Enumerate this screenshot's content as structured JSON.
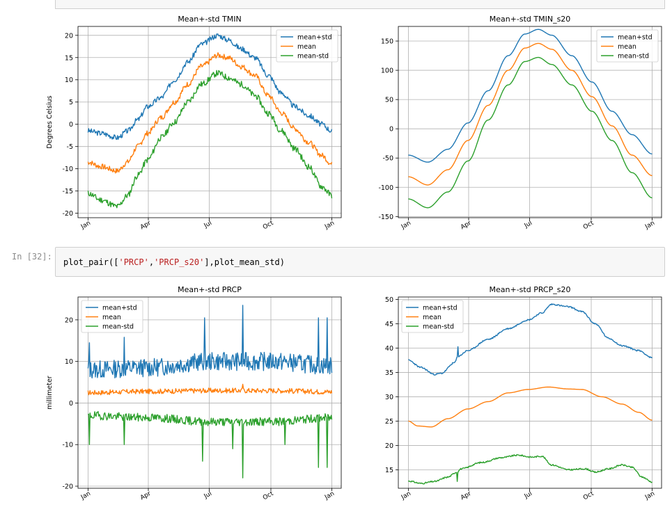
{
  "cells": {
    "prompt": "In [32]:",
    "code": {
      "prefix": "plot_pair([",
      "arg1": "'PRCP'",
      "comma": ",",
      "arg2": "'PRCP_s20'",
      "suffix": "],plot_mean_std)"
    }
  },
  "chart_data": [
    {
      "type": "line",
      "title": "Mean+-std   TMIN",
      "ylabel": "Degrees Celsius",
      "ylim": [
        -21,
        22
      ],
      "yticks": [
        -20,
        -15,
        -10,
        -5,
        0,
        5,
        10,
        15,
        20
      ],
      "xticks": [
        "Jan",
        "Apr",
        "Jul",
        "Oct",
        "Jan"
      ],
      "xtick_days": [
        1,
        91,
        182,
        274,
        365
      ],
      "grid": true,
      "legend": "top-right",
      "series": [
        {
          "name": "mean+std",
          "color": "#1f77b4",
          "noise": 0.6,
          "seed": 3,
          "knots": [
            [
              1,
              -1.5
            ],
            [
              20,
              -2
            ],
            [
              45,
              -3
            ],
            [
              60,
              -1.5
            ],
            [
              75,
              1
            ],
            [
              90,
              4
            ],
            [
              110,
              6
            ],
            [
              130,
              10
            ],
            [
              150,
              14
            ],
            [
              170,
              18
            ],
            [
              195,
              20
            ],
            [
              210,
              19
            ],
            [
              230,
              17
            ],
            [
              250,
              15
            ],
            [
              270,
              11
            ],
            [
              290,
              7
            ],
            [
              310,
              4
            ],
            [
              330,
              2
            ],
            [
              350,
              0
            ],
            [
              365,
              -1.5
            ]
          ]
        },
        {
          "name": "mean",
          "color": "#ff7f0e",
          "noise": 0.6,
          "seed": 7,
          "knots": [
            [
              1,
              -8.5
            ],
            [
              20,
              -9.5
            ],
            [
              45,
              -10.5
            ],
            [
              60,
              -8.5
            ],
            [
              75,
              -5
            ],
            [
              90,
              -2
            ],
            [
              110,
              1.5
            ],
            [
              130,
              5
            ],
            [
              150,
              9
            ],
            [
              170,
              13
            ],
            [
              195,
              15.5
            ],
            [
              210,
              15
            ],
            [
              230,
              13
            ],
            [
              250,
              11
            ],
            [
              270,
              6.5
            ],
            [
              290,
              2.5
            ],
            [
              310,
              -1
            ],
            [
              330,
              -4
            ],
            [
              350,
              -7
            ],
            [
              365,
              -9
            ]
          ]
        },
        {
          "name": "mean-std",
          "color": "#2ca02c",
          "noise": 0.7,
          "seed": 11,
          "knots": [
            [
              1,
              -15.5
            ],
            [
              20,
              -17
            ],
            [
              45,
              -18.5
            ],
            [
              60,
              -16
            ],
            [
              75,
              -11.5
            ],
            [
              90,
              -8
            ],
            [
              110,
              -3
            ],
            [
              130,
              0.5
            ],
            [
              150,
              5
            ],
            [
              170,
              9
            ],
            [
              195,
              11.5
            ],
            [
              210,
              10.5
            ],
            [
              230,
              9
            ],
            [
              250,
              6.5
            ],
            [
              270,
              2.5
            ],
            [
              290,
              -1.5
            ],
            [
              310,
              -5.5
            ],
            [
              330,
              -9.5
            ],
            [
              350,
              -14
            ],
            [
              365,
              -16
            ]
          ]
        }
      ]
    },
    {
      "type": "line",
      "title": "Mean+-std   TMIN_s20",
      "ylabel": "",
      "ylim": [
        -152,
        175
      ],
      "yticks": [
        -150,
        -100,
        -50,
        0,
        50,
        100,
        150
      ],
      "xticks": [
        "Jan",
        "Apr",
        "Jul",
        "Oct",
        "Jan"
      ],
      "xtick_days": [
        1,
        91,
        182,
        274,
        365
      ],
      "grid": true,
      "legend": "top-right",
      "series": [
        {
          "name": "mean+std",
          "color": "#1f77b4",
          "noise": 0,
          "seed": 1,
          "knots": [
            [
              1,
              -45
            ],
            [
              30,
              -57
            ],
            [
              60,
              -35
            ],
            [
              90,
              10
            ],
            [
              120,
              65
            ],
            [
              150,
              125
            ],
            [
              175,
              162
            ],
            [
              195,
              170
            ],
            [
              215,
              160
            ],
            [
              245,
              125
            ],
            [
              275,
              80
            ],
            [
              305,
              30
            ],
            [
              335,
              -10
            ],
            [
              365,
              -43
            ]
          ]
        },
        {
          "name": "mean",
          "color": "#ff7f0e",
          "noise": 0,
          "seed": 2,
          "knots": [
            [
              1,
              -82
            ],
            [
              30,
              -96
            ],
            [
              60,
              -70
            ],
            [
              90,
              -20
            ],
            [
              120,
              40
            ],
            [
              150,
              100
            ],
            [
              175,
              138
            ],
            [
              195,
              146
            ],
            [
              215,
              136
            ],
            [
              245,
              100
            ],
            [
              275,
              55
            ],
            [
              305,
              5
            ],
            [
              335,
              -45
            ],
            [
              365,
              -80
            ]
          ]
        },
        {
          "name": "mean-std",
          "color": "#2ca02c",
          "noise": 0,
          "seed": 4,
          "knots": [
            [
              1,
              -120
            ],
            [
              30,
              -135
            ],
            [
              60,
              -108
            ],
            [
              90,
              -55
            ],
            [
              120,
              15
            ],
            [
              150,
              75
            ],
            [
              175,
              115
            ],
            [
              195,
              122
            ],
            [
              215,
              110
            ],
            [
              245,
              75
            ],
            [
              275,
              30
            ],
            [
              305,
              -20
            ],
            [
              335,
              -75
            ],
            [
              365,
              -118
            ]
          ]
        }
      ]
    },
    {
      "type": "line",
      "title": "Mean+-std   PRCP",
      "ylabel": "millimeter",
      "ylim": [
        -20.5,
        25.5
      ],
      "yticks": [
        -20,
        -10,
        0,
        10,
        20
      ],
      "xticks": [
        "Jan",
        "Apr",
        "Jul",
        "Oct",
        "Jan"
      ],
      "xtick_days": [
        1,
        91,
        182,
        274,
        365
      ],
      "grid": true,
      "legend": "top-left",
      "series": [
        {
          "name": "mean+std",
          "color": "#1f77b4",
          "noise": 2.2,
          "seed": 13,
          "knots": [
            [
              1,
              8
            ],
            [
              90,
              8.5
            ],
            [
              182,
              10
            ],
            [
              274,
              10
            ],
            [
              365,
              9
            ]
          ],
          "spikes": [
            [
              3,
              14.5
            ],
            [
              55,
              15.8
            ],
            [
              175,
              20.5
            ],
            [
              232,
              23.5
            ],
            [
              345,
              20.5
            ],
            [
              358,
              20.5
            ]
          ]
        },
        {
          "name": "mean",
          "color": "#ff7f0e",
          "noise": 0.6,
          "seed": 17,
          "knots": [
            [
              1,
              2.5
            ],
            [
              90,
              2.8
            ],
            [
              182,
              3
            ],
            [
              274,
              3
            ],
            [
              365,
              2.7
            ]
          ],
          "spikes": [
            [
              232,
              4.5
            ]
          ]
        },
        {
          "name": "mean-std",
          "color": "#2ca02c",
          "noise": 1.0,
          "seed": 19,
          "knots": [
            [
              1,
              -3
            ],
            [
              90,
              -3.5
            ],
            [
              182,
              -4.5
            ],
            [
              274,
              -4.5
            ],
            [
              365,
              -3.5
            ]
          ],
          "spikes": [
            [
              3,
              -10
            ],
            [
              55,
              -10
            ],
            [
              172,
              -14
            ],
            [
              217,
              -11
            ],
            [
              232,
              -18
            ],
            [
              295,
              -10
            ],
            [
              345,
              -15.5
            ],
            [
              358,
              -15.5
            ]
          ]
        }
      ]
    },
    {
      "type": "line",
      "title": "Mean+-std   PRCP_s20",
      "ylabel": "",
      "ylim": [
        11.2,
        50.5
      ],
      "yticks": [
        15,
        20,
        25,
        30,
        35,
        40,
        45,
        50
      ],
      "xticks": [
        "Jan",
        "Apr",
        "Jul",
        "Oct",
        "Jan"
      ],
      "xtick_days": [
        1,
        91,
        182,
        274,
        365
      ],
      "grid": true,
      "legend": "top-left",
      "series": [
        {
          "name": "mean+std",
          "color": "#1f77b4",
          "noise": 0.15,
          "seed": 23,
          "knots": [
            [
              1,
              37.5
            ],
            [
              20,
              36
            ],
            [
              40,
              34.6
            ],
            [
              50,
              34.8
            ],
            [
              70,
              37
            ],
            [
              75,
              38.3
            ],
            [
              90,
              39.5
            ],
            [
              120,
              41.8
            ],
            [
              150,
              44
            ],
            [
              180,
              45.8
            ],
            [
              200,
              47.2
            ],
            [
              215,
              49
            ],
            [
              240,
              48.5
            ],
            [
              260,
              47.5
            ],
            [
              280,
              45
            ],
            [
              300,
              42
            ],
            [
              320,
              40.5
            ],
            [
              345,
              39.5
            ],
            [
              365,
              38
            ]
          ],
          "spikes": [
            [
              75,
              40.3
            ]
          ]
        },
        {
          "name": "mean",
          "color": "#ff7f0e",
          "noise": 0,
          "seed": 29,
          "knots": [
            [
              1,
              25
            ],
            [
              15,
              24
            ],
            [
              35,
              23.8
            ],
            [
              60,
              25.5
            ],
            [
              90,
              27.5
            ],
            [
              120,
              29
            ],
            [
              150,
              30.8
            ],
            [
              180,
              31.5
            ],
            [
              210,
              32
            ],
            [
              240,
              31.6
            ],
            [
              260,
              31.5
            ],
            [
              290,
              30
            ],
            [
              320,
              28.5
            ],
            [
              345,
              26.8
            ],
            [
              365,
              25.2
            ]
          ]
        },
        {
          "name": "mean-std",
          "color": "#2ca02c",
          "noise": 0.15,
          "seed": 31,
          "knots": [
            [
              1,
              12.7
            ],
            [
              20,
              12.2
            ],
            [
              40,
              12.6
            ],
            [
              60,
              13.5
            ],
            [
              73,
              14.5
            ],
            [
              80,
              15.2
            ],
            [
              110,
              16.5
            ],
            [
              140,
              17.5
            ],
            [
              165,
              18
            ],
            [
              185,
              17.6
            ],
            [
              200,
              17.8
            ],
            [
              215,
              16
            ],
            [
              240,
              15
            ],
            [
              265,
              15.2
            ],
            [
              280,
              14.5
            ],
            [
              300,
              15.2
            ],
            [
              320,
              16
            ],
            [
              335,
              15.5
            ],
            [
              350,
              13.5
            ],
            [
              365,
              12.5
            ]
          ],
          "spikes": [
            [
              74,
              12.6
            ]
          ]
        }
      ]
    }
  ]
}
